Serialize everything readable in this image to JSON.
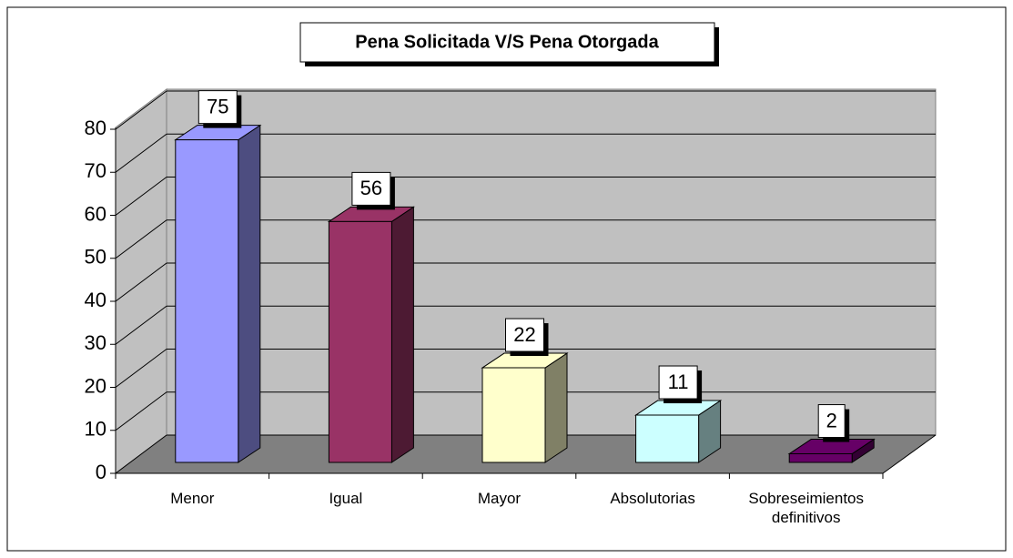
{
  "chart_data": {
    "type": "bar",
    "title": "Pena Solicitada V/S Pena Otorgada",
    "categories": [
      "Menor",
      "Igual",
      "Mayor",
      "Absolutorias",
      "Sobreseimientos definitivos"
    ],
    "values": [
      75,
      56,
      22,
      11,
      2
    ],
    "colors": [
      "#9999ff",
      "#993366",
      "#ffffcc",
      "#ccffff",
      "#660066"
    ],
    "side_colors": [
      "#4d4d80",
      "#4d1a33",
      "#808066",
      "#668080",
      "#330033"
    ],
    "ylim": [
      0,
      80
    ],
    "yticks": [
      0,
      10,
      20,
      30,
      40,
      50,
      60,
      70,
      80
    ],
    "grid": true
  }
}
